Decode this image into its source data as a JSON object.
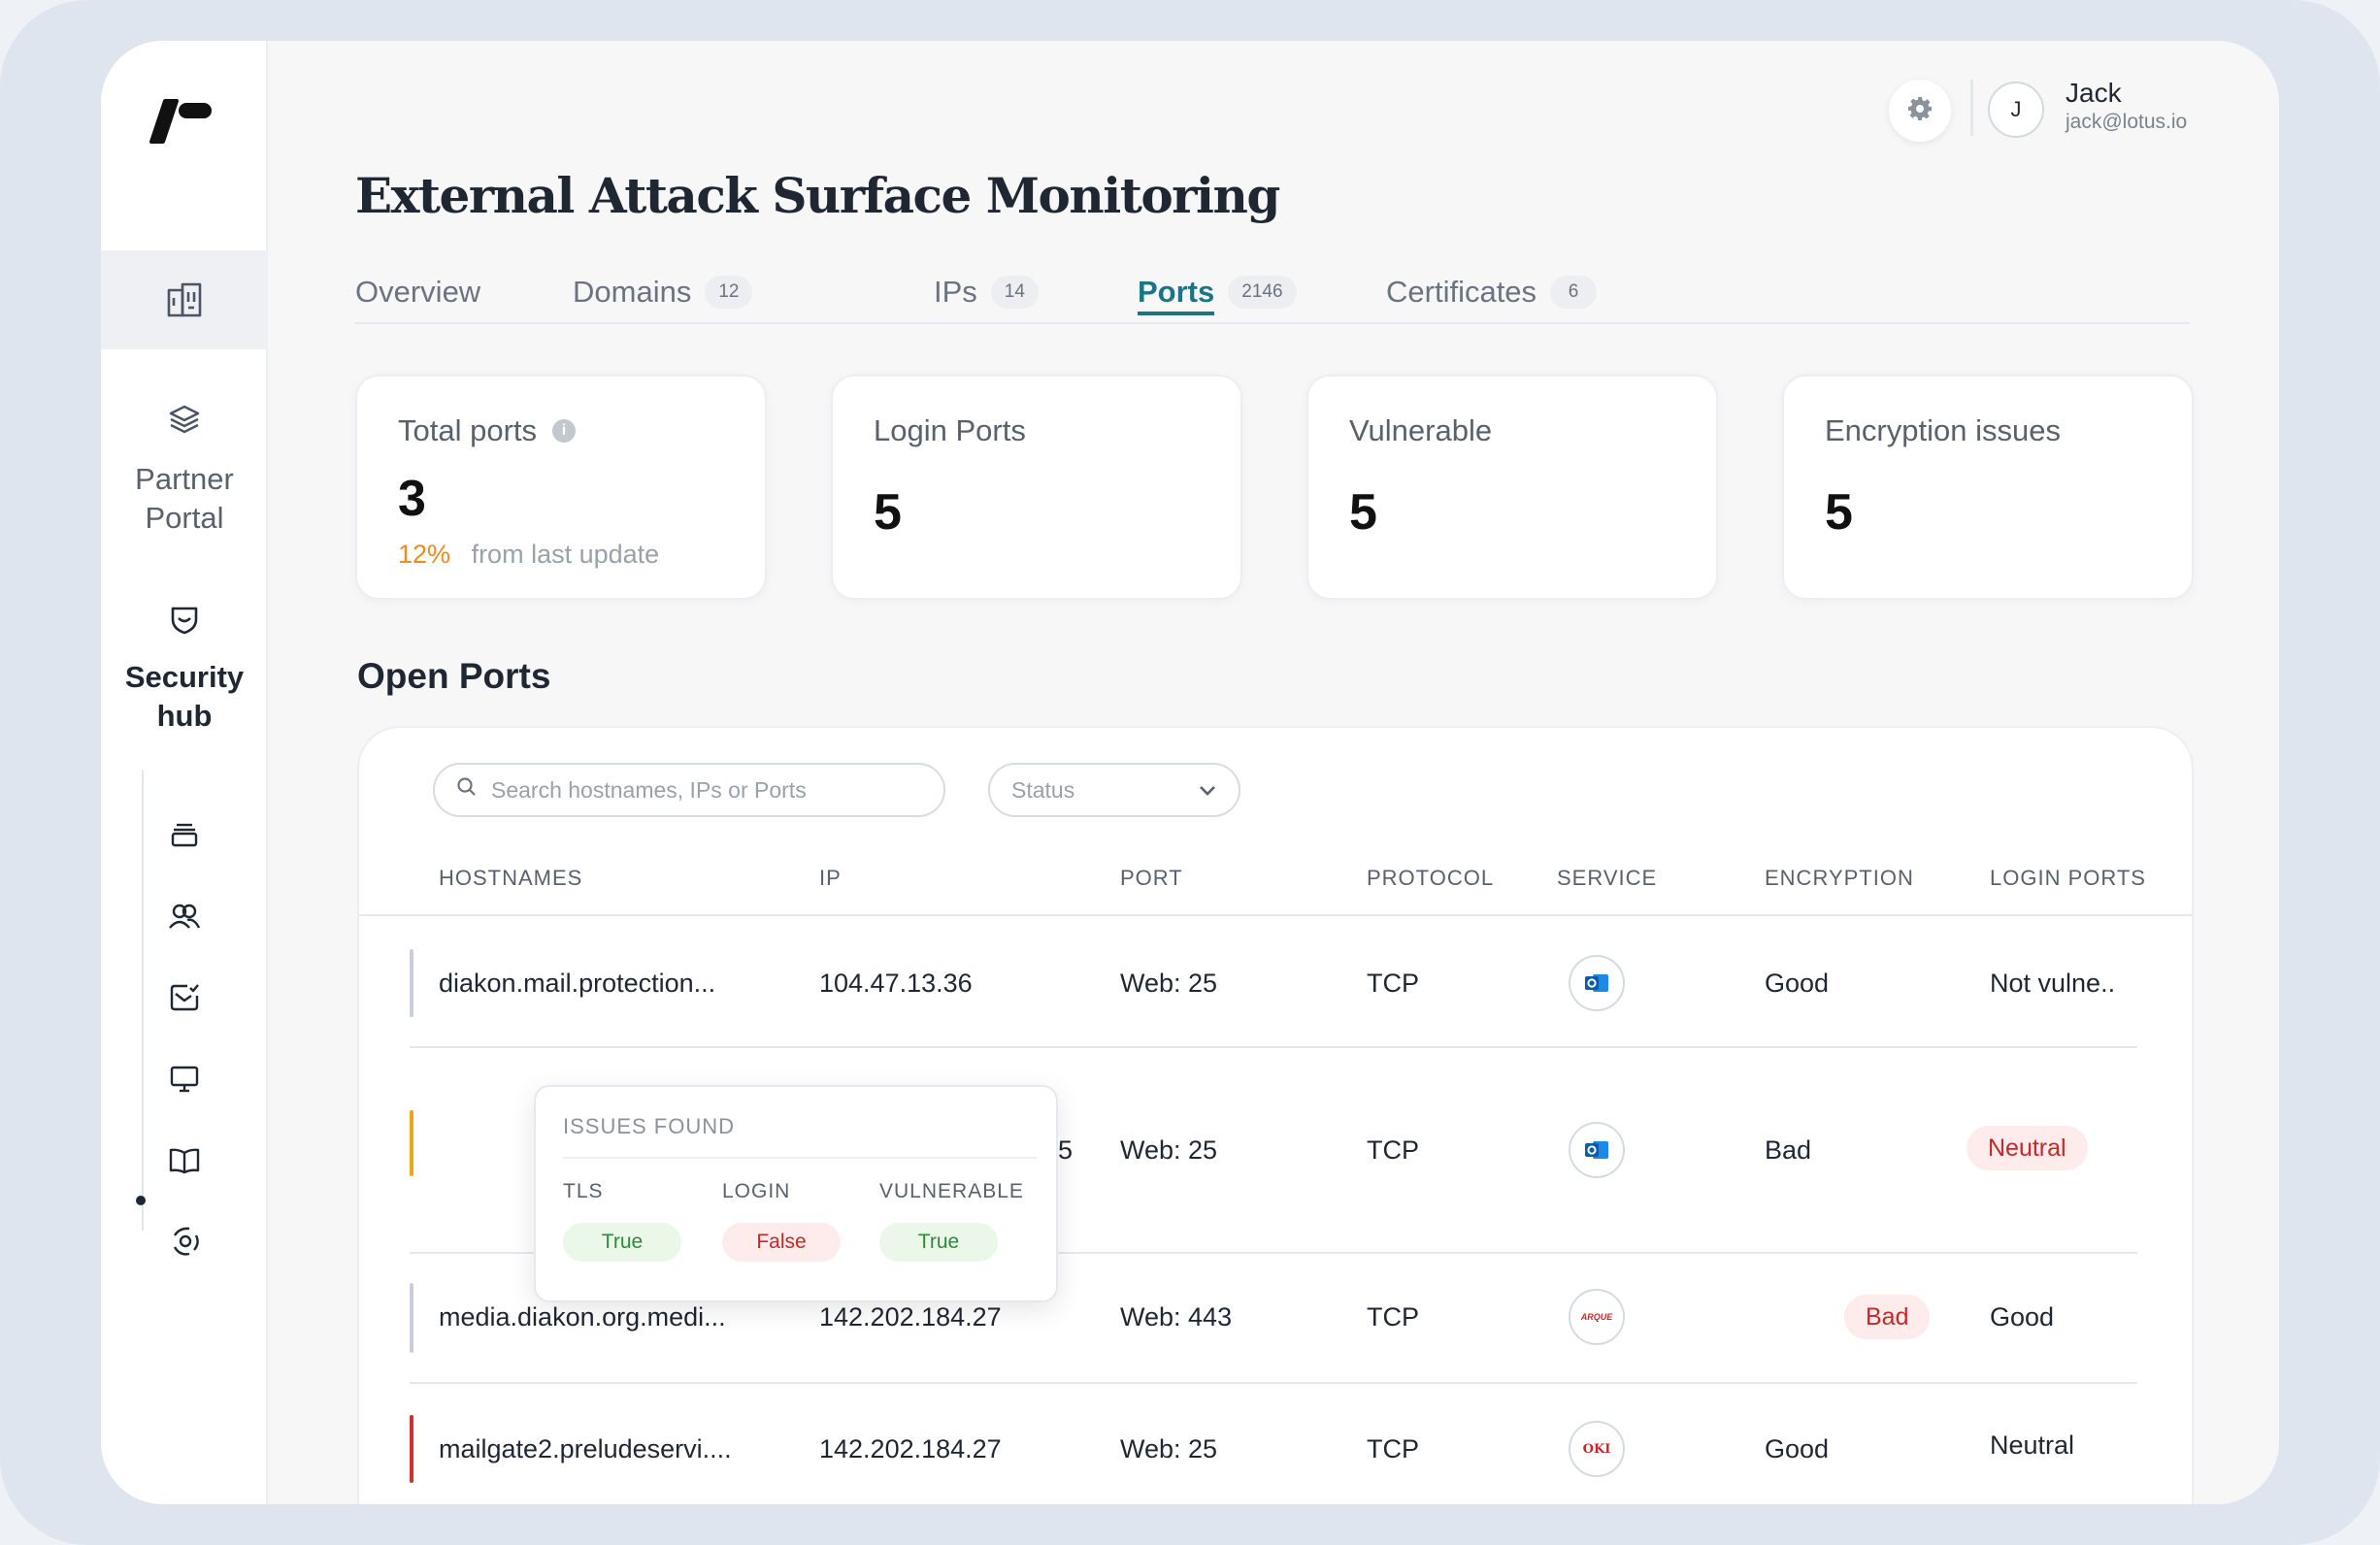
{
  "sidebar": {
    "partner_portal_label": "Partner Portal",
    "security_hub_label": "Security hub"
  },
  "header": {
    "user": {
      "initial": "J",
      "name": "Jack",
      "email": "jack@lotus.io"
    }
  },
  "page_title": "External Attack Surface Monitoring",
  "tabs": [
    {
      "label": "Overview",
      "badge": ""
    },
    {
      "label": "Domains",
      "badge": "12"
    },
    {
      "label": "IPs",
      "badge": "14"
    },
    {
      "label": "Ports",
      "badge": "2146"
    },
    {
      "label": "Certificates",
      "badge": "6"
    }
  ],
  "active_tab": "Ports",
  "stats": [
    {
      "label": "Total ports",
      "value": "3",
      "change_pct": "12%",
      "change_text": "from last update"
    },
    {
      "label": "Login Ports",
      "value": "5"
    },
    {
      "label": "Vulnerable",
      "value": "5"
    },
    {
      "label": "Encryption issues",
      "value": "5"
    }
  ],
  "section_title": "Open Ports",
  "search": {
    "placeholder": "Search hostnames, IPs or Ports"
  },
  "status_filter": {
    "placeholder": "Status"
  },
  "columns": [
    "HOSTNAMES",
    "IP",
    "PORT",
    "PROTOCOL",
    "SERVICE",
    "ENCRYPTION",
    "LOGIN PORTS"
  ],
  "rows": [
    {
      "hostname": "diakon.mail.protection...",
      "ip": "104.47.13.36",
      "port": "Web: 25",
      "protocol": "TCP",
      "service_icon": "outlook-icon",
      "encryption": "Good",
      "login": "Not vulne..",
      "bar_color": "#c9cedd"
    },
    {
      "hostname": "",
      "ip": "5",
      "port": "Web: 25",
      "protocol": "TCP",
      "service_icon": "outlook-icon",
      "encryption": "Bad",
      "login": "Neutral",
      "bar_color": "#f0a41c"
    },
    {
      "hostname": "media.diakon.org.medi...",
      "ip": "142.202.184.27",
      "port": "Web: 443",
      "protocol": "TCP",
      "service_icon": "arque-icon",
      "encryption": "Bad",
      "login": "Good",
      "bar_color": "#c9cedd"
    },
    {
      "hostname": "mailgate2.preludeservi....",
      "ip": "142.202.184.27",
      "port": "Web: 25",
      "protocol": "TCP",
      "service_icon": "oki-icon",
      "encryption": "Good",
      "login": "Neutral",
      "bar_color": "#d32f2f"
    }
  ],
  "issues_popover": {
    "title": "ISSUES FOUND",
    "items": [
      {
        "label": "TLS",
        "value": "True"
      },
      {
        "label": "LOGIN",
        "value": "False"
      },
      {
        "label": "VULNERABLE",
        "value": "True"
      }
    ]
  },
  "service_logo_text": {
    "arque": "ARQUE",
    "oki": "OKI"
  },
  "colors": {
    "accent": "#1c7487",
    "warning": "#f08a1c",
    "danger": "#c62828",
    "success": "#2f8a3a"
  }
}
